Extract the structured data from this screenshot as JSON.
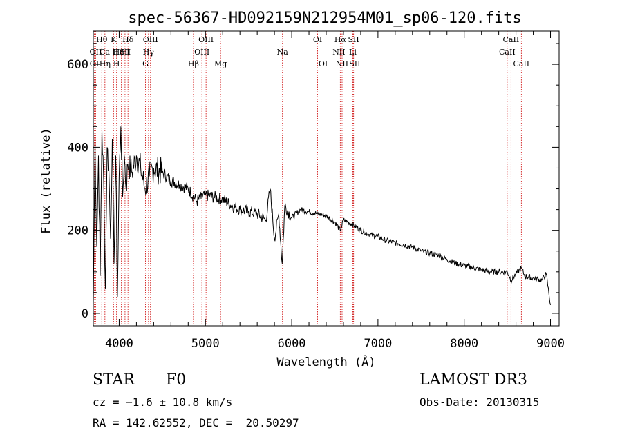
{
  "chart_data": {
    "type": "line",
    "title": "spec-56367-HD092159N212954M01_sp06-120.fits",
    "xlabel": "Wavelength (Å)",
    "ylabel": "Flux (relative)",
    "xlim": [
      3700,
      9100
    ],
    "ylim": [
      -30,
      680
    ],
    "xticks": [
      4000,
      5000,
      6000,
      7000,
      8000,
      9000
    ],
    "yticks": [
      0,
      200,
      400,
      600
    ],
    "xtick_labels": [
      "4000",
      "5000",
      "6000",
      "7000",
      "8000",
      "9000"
    ],
    "ytick_labels": [
      "0",
      "200",
      "400",
      "600"
    ],
    "grid": false,
    "series": [
      {
        "name": "flux",
        "x": [
          3700,
          3720,
          3740,
          3760,
          3780,
          3800,
          3820,
          3840,
          3860,
          3880,
          3900,
          3920,
          3940,
          3960,
          3980,
          4000,
          4020,
          4040,
          4060,
          4080,
          4100,
          4150,
          4200,
          4250,
          4300,
          4350,
          4400,
          4500,
          4600,
          4700,
          4800,
          4900,
          5000,
          5100,
          5200,
          5300,
          5400,
          5500,
          5600,
          5700,
          5750,
          5800,
          5850,
          5890,
          5920,
          6000,
          6100,
          6200,
          6300,
          6400,
          6500,
          6563,
          6600,
          6700,
          6800,
          6900,
          7000,
          7100,
          7200,
          7300,
          7400,
          7500,
          7600,
          7700,
          7800,
          7900,
          8000,
          8100,
          8200,
          8300,
          8400,
          8500,
          8542,
          8600,
          8662,
          8700,
          8800,
          8900,
          8950,
          9000
        ],
        "y": [
          20,
          420,
          160,
          380,
          90,
          440,
          320,
          60,
          400,
          350,
          180,
          420,
          120,
          380,
          40,
          330,
          450,
          280,
          380,
          300,
          360,
          340,
          380,
          350,
          300,
          330,
          350,
          340,
          320,
          310,
          300,
          270,
          285,
          280,
          275,
          260,
          250,
          245,
          240,
          225,
          300,
          180,
          240,
          120,
          260,
          230,
          250,
          245,
          240,
          235,
          220,
          200,
          225,
          215,
          200,
          190,
          185,
          175,
          170,
          165,
          160,
          150,
          145,
          140,
          130,
          120,
          115,
          110,
          105,
          100,
          100,
          100,
          80,
          95,
          110,
          90,
          85,
          80,
          95,
          20
        ]
      }
    ],
    "lines": [
      {
        "name": "Ca II H",
        "wavelength": 3934,
        "row": 1,
        "side": "top"
      },
      {
        "name": "He I",
        "wavelength": 4026,
        "row": 1,
        "side": "top"
      },
      {
        "name": "SII",
        "wavelength": 4068,
        "row": 1,
        "side": "top"
      },
      {
        "name": "Hθ",
        "wavelength": 3798,
        "row": 0,
        "side": "top"
      },
      {
        "name": "K",
        "wavelength": 3934,
        "row": 0,
        "side": "top"
      },
      {
        "name": "Hδ",
        "wavelength": 4102,
        "row": 0,
        "side": "top"
      },
      {
        "name": "OII",
        "wavelength": 3727,
        "row": 1,
        "side": "top"
      },
      {
        "name": "OIII",
        "wavelength": 4363,
        "row": 0,
        "side": "top"
      },
      {
        "name": "Hγ",
        "wavelength": 4340,
        "row": 1,
        "side": "top"
      },
      {
        "name": "G",
        "wavelength": 4305,
        "row": 2,
        "side": "top"
      },
      {
        "name": "OIII",
        "wavelength": 5007,
        "row": 0,
        "side": "top"
      },
      {
        "name": "OIII",
        "wavelength": 4959,
        "row": 1,
        "side": "top"
      },
      {
        "name": "Hβ",
        "wavelength": 4861,
        "row": 2,
        "side": "top"
      },
      {
        "name": "Mg",
        "wavelength": 5175,
        "row": 2,
        "side": "top"
      },
      {
        "name": "Na",
        "wavelength": 5893,
        "row": 1,
        "side": "top"
      },
      {
        "name": "OI",
        "wavelength": 6300,
        "row": 0,
        "side": "top"
      },
      {
        "name": "OI",
        "wavelength": 6364,
        "row": 2,
        "side": "top"
      },
      {
        "name": "Hα",
        "wavelength": 6563,
        "row": 0,
        "side": "top"
      },
      {
        "name": "NII",
        "wavelength": 6548,
        "row": 1,
        "side": "top"
      },
      {
        "name": "NII",
        "wavelength": 6584,
        "row": 2,
        "side": "top"
      },
      {
        "name": "SII",
        "wavelength": 6717,
        "row": 0,
        "side": "top"
      },
      {
        "name": "Li",
        "wavelength": 6708,
        "row": 1,
        "side": "top"
      },
      {
        "name": "SII",
        "wavelength": 6731,
        "row": 2,
        "side": "top"
      },
      {
        "name": "CaII",
        "wavelength": 8542,
        "row": 0,
        "side": "top"
      },
      {
        "name": "CaII",
        "wavelength": 8498,
        "row": 1,
        "side": "top"
      },
      {
        "name": "CaII",
        "wavelength": 8662,
        "row": 2,
        "side": "top"
      },
      {
        "name": "OI",
        "wavelength": 3712,
        "row": 2,
        "side": "top"
      },
      {
        "name": "Hη",
        "wavelength": 3835,
        "row": 2,
        "side": "top"
      },
      {
        "name": "H",
        "wavelength": 3970,
        "row": 2,
        "side": "top"
      }
    ],
    "line_color": "#000000",
    "marker_color": "#cc0000"
  },
  "info": {
    "class_label": "STAR",
    "subclass_label": "F0",
    "survey_label": "LAMOST DR3",
    "cz_text": "cz = −1.6 ± 10.8 km/s",
    "obs_date_text": "Obs-Date: 20130315",
    "coords_text": "RA = 142.62552, DEC =  20.50297"
  }
}
